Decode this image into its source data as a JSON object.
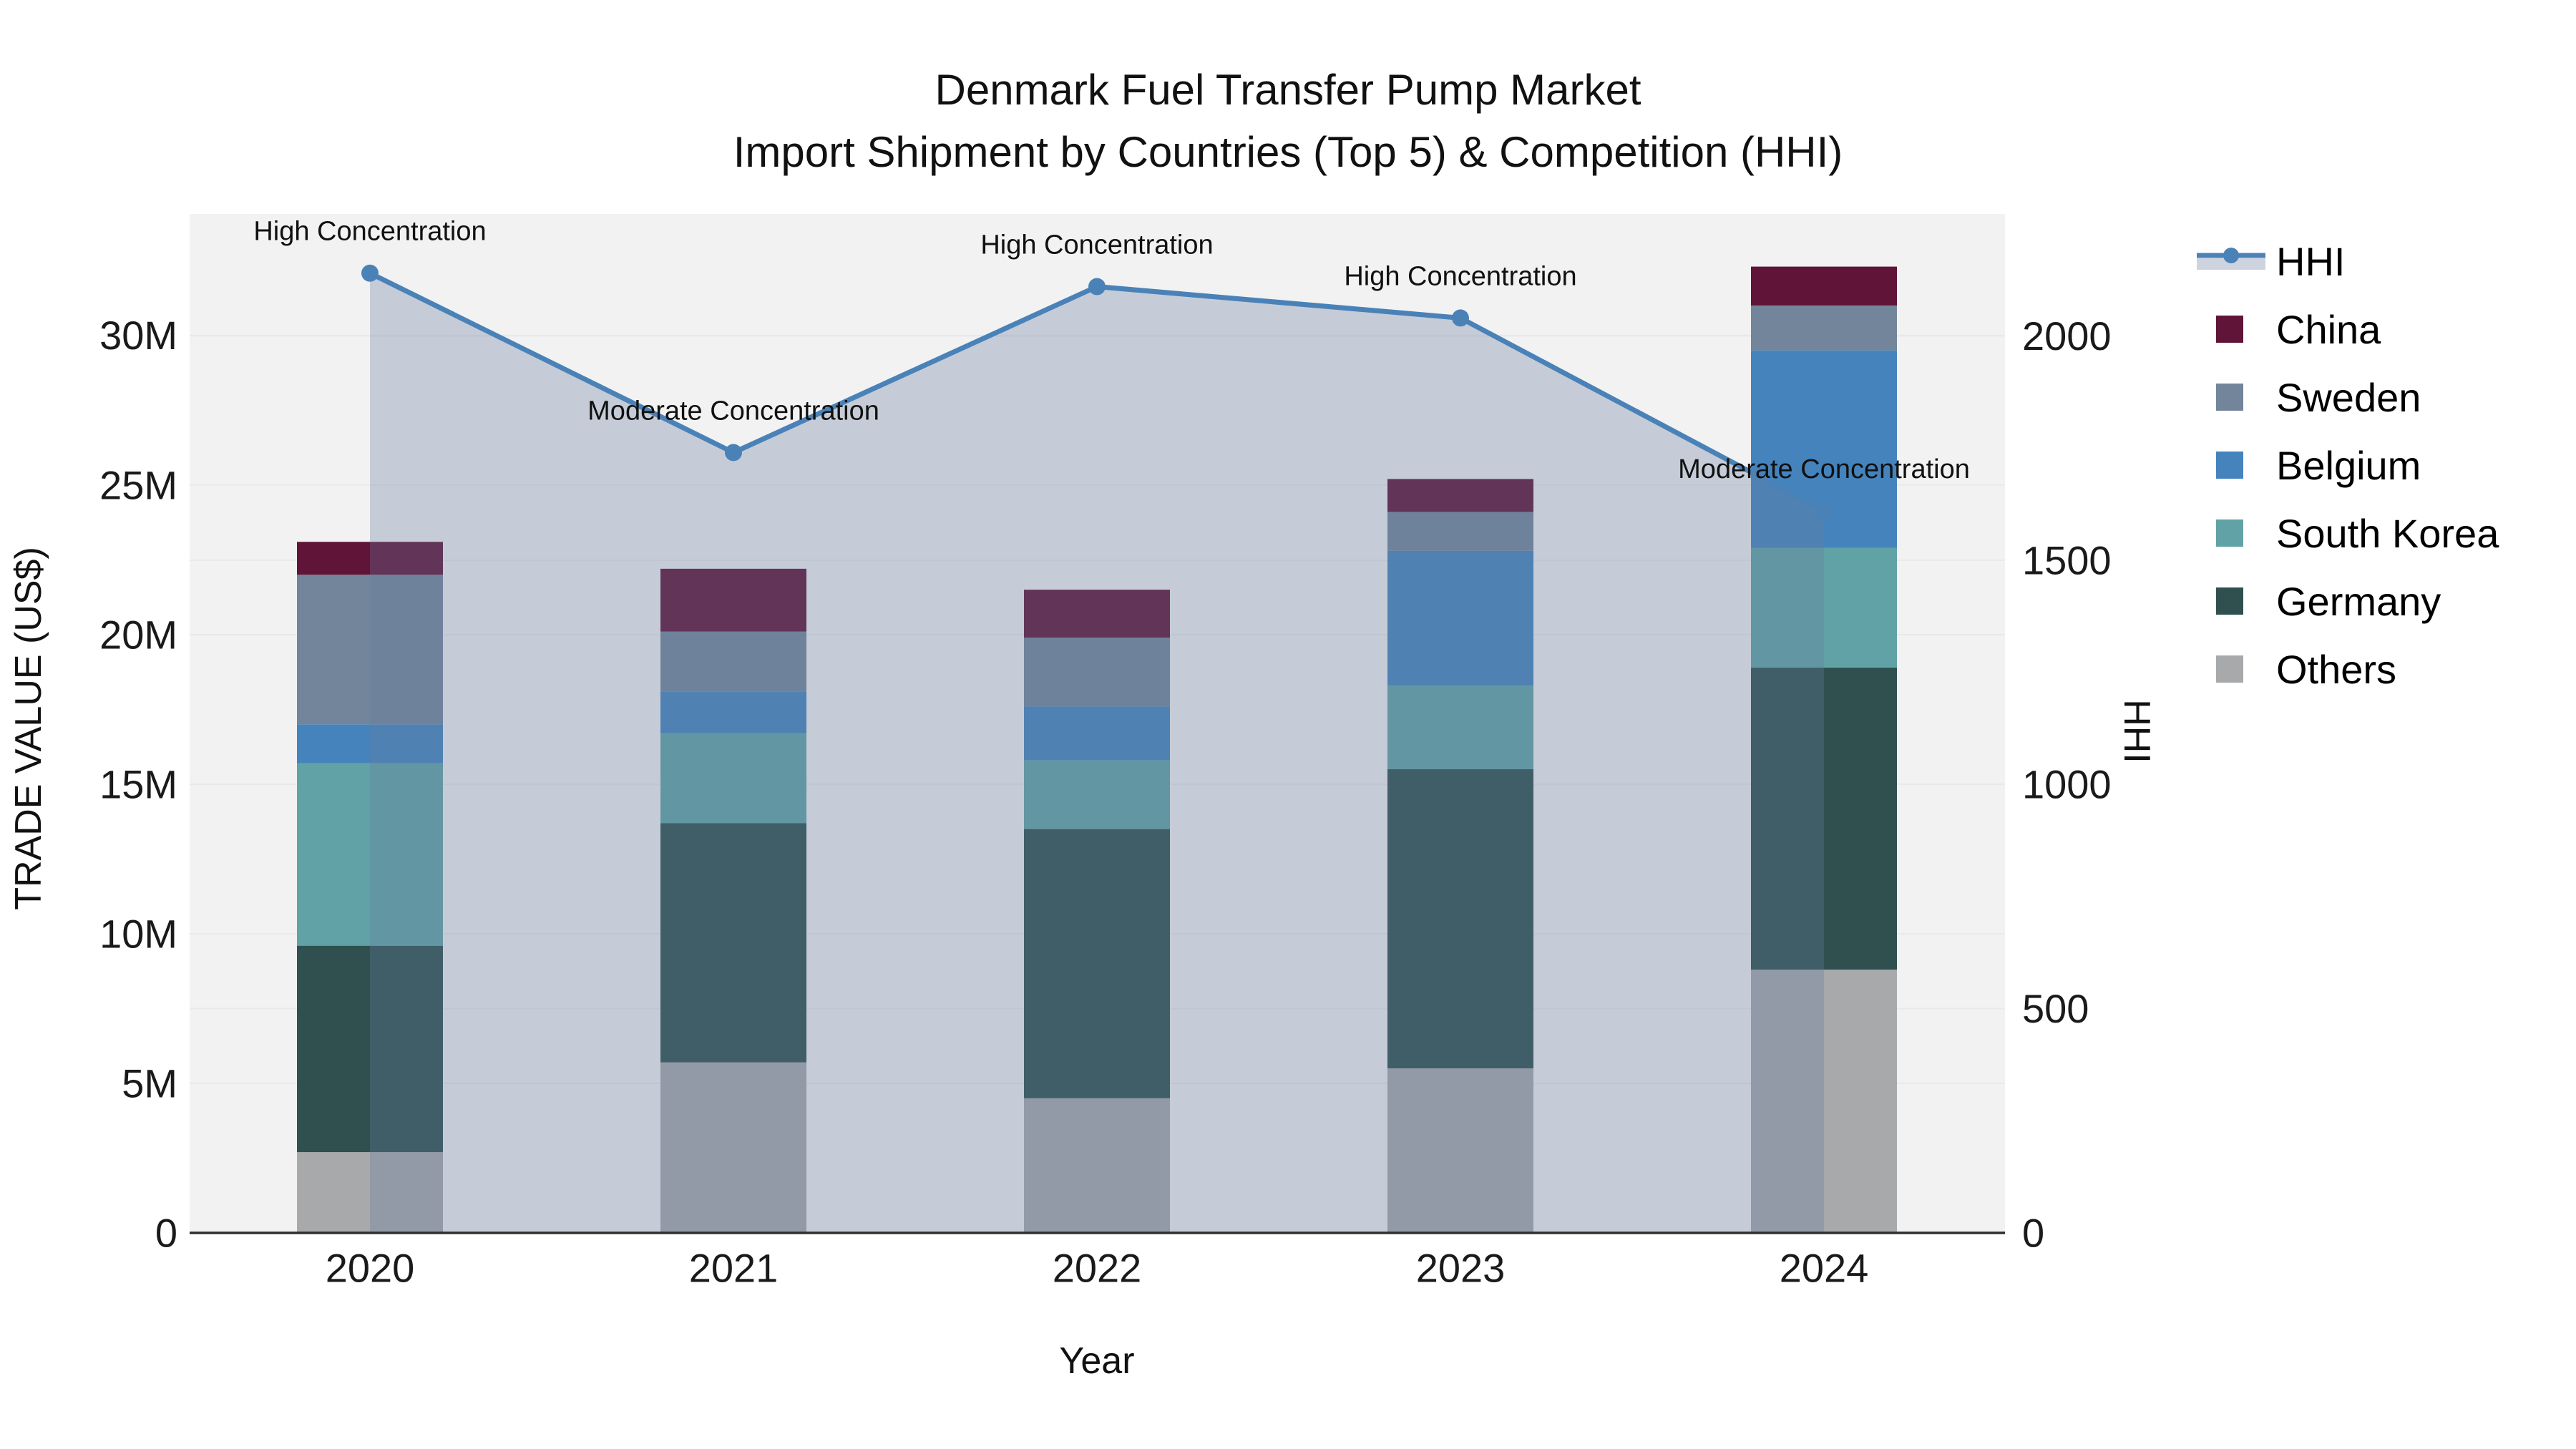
{
  "title": {
    "line1": "Denmark Fuel Transfer Pump Market",
    "line2": "Import Shipment by Countries (Top 5) & Competition (HHI)"
  },
  "chart_data": {
    "type": "bar",
    "subtype": "stacked-bars-with-line-area-overlay",
    "x": [
      "2020",
      "2021",
      "2022",
      "2023",
      "2024"
    ],
    "xlabel": "Year",
    "ylabel_left": "TRADE VALUE (US$)",
    "ylabel_right": "HHI",
    "ylim_left_musd": [
      0,
      34.06
    ],
    "ylim_right": [
      0,
      2272
    ],
    "grid": "horizontal",
    "legend_position": "right-outside",
    "y_left_ticks": {
      "labels": [
        "0",
        "5M",
        "10M",
        "15M",
        "20M",
        "25M",
        "30M"
      ],
      "values_musd": [
        0,
        5,
        10,
        15,
        20,
        25,
        30
      ]
    },
    "y_right_ticks": {
      "labels": [
        "0",
        "500",
        "1000",
        "1500",
        "2000"
      ],
      "values": [
        0,
        500,
        1000,
        1500,
        2000
      ]
    },
    "stack_order_bottom_to_top": [
      "Others",
      "Germany",
      "South Korea",
      "Belgium",
      "Sweden",
      "China"
    ],
    "series": [
      {
        "name": "China",
        "color": "#601437",
        "values_musd": [
          1.1,
          2.1,
          1.6,
          1.1,
          1.3
        ]
      },
      {
        "name": "Sweden",
        "color": "#73859b",
        "values_musd": [
          5.0,
          2.0,
          2.3,
          1.3,
          1.5
        ]
      },
      {
        "name": "Belgium",
        "color": "#4583bd",
        "values_musd": [
          1.3,
          1.4,
          1.8,
          4.5,
          6.6
        ]
      },
      {
        "name": "South Korea",
        "color": "#60a2a5",
        "values_musd": [
          6.1,
          3.0,
          2.3,
          2.8,
          4.0
        ]
      },
      {
        "name": "Germany",
        "color": "#2f504e",
        "values_musd": [
          6.9,
          8.0,
          9.0,
          10.0,
          10.1
        ]
      },
      {
        "name": "Others",
        "color": "#a8a9ab",
        "values_musd": [
          2.7,
          5.7,
          4.5,
          5.5,
          8.8
        ]
      }
    ],
    "totals_musd": [
      23.1,
      22.2,
      21.5,
      25.2,
      32.3
    ],
    "hhi_line": {
      "name": "HHI",
      "line_color": "#4a82b8",
      "area_fill_color": "#687ca0",
      "area_fill_opacity": 0.32,
      "values": [
        2140,
        1740,
        2110,
        2040,
        1610
      ],
      "annotations": [
        "High Concentration",
        "Moderate Concentration",
        "High Concentration",
        "High Concentration",
        "Moderate Concentration"
      ]
    },
    "colors": {
      "plot_background": "#f2f2f2",
      "page_background": "#ffffff",
      "gridline": "#e9e9e9",
      "axis_line": "#2f2f2f",
      "text": "#111111",
      "legend_hhi_band_sample": "#cdd4df"
    }
  },
  "legend": {
    "hhi_label": "HHI"
  }
}
